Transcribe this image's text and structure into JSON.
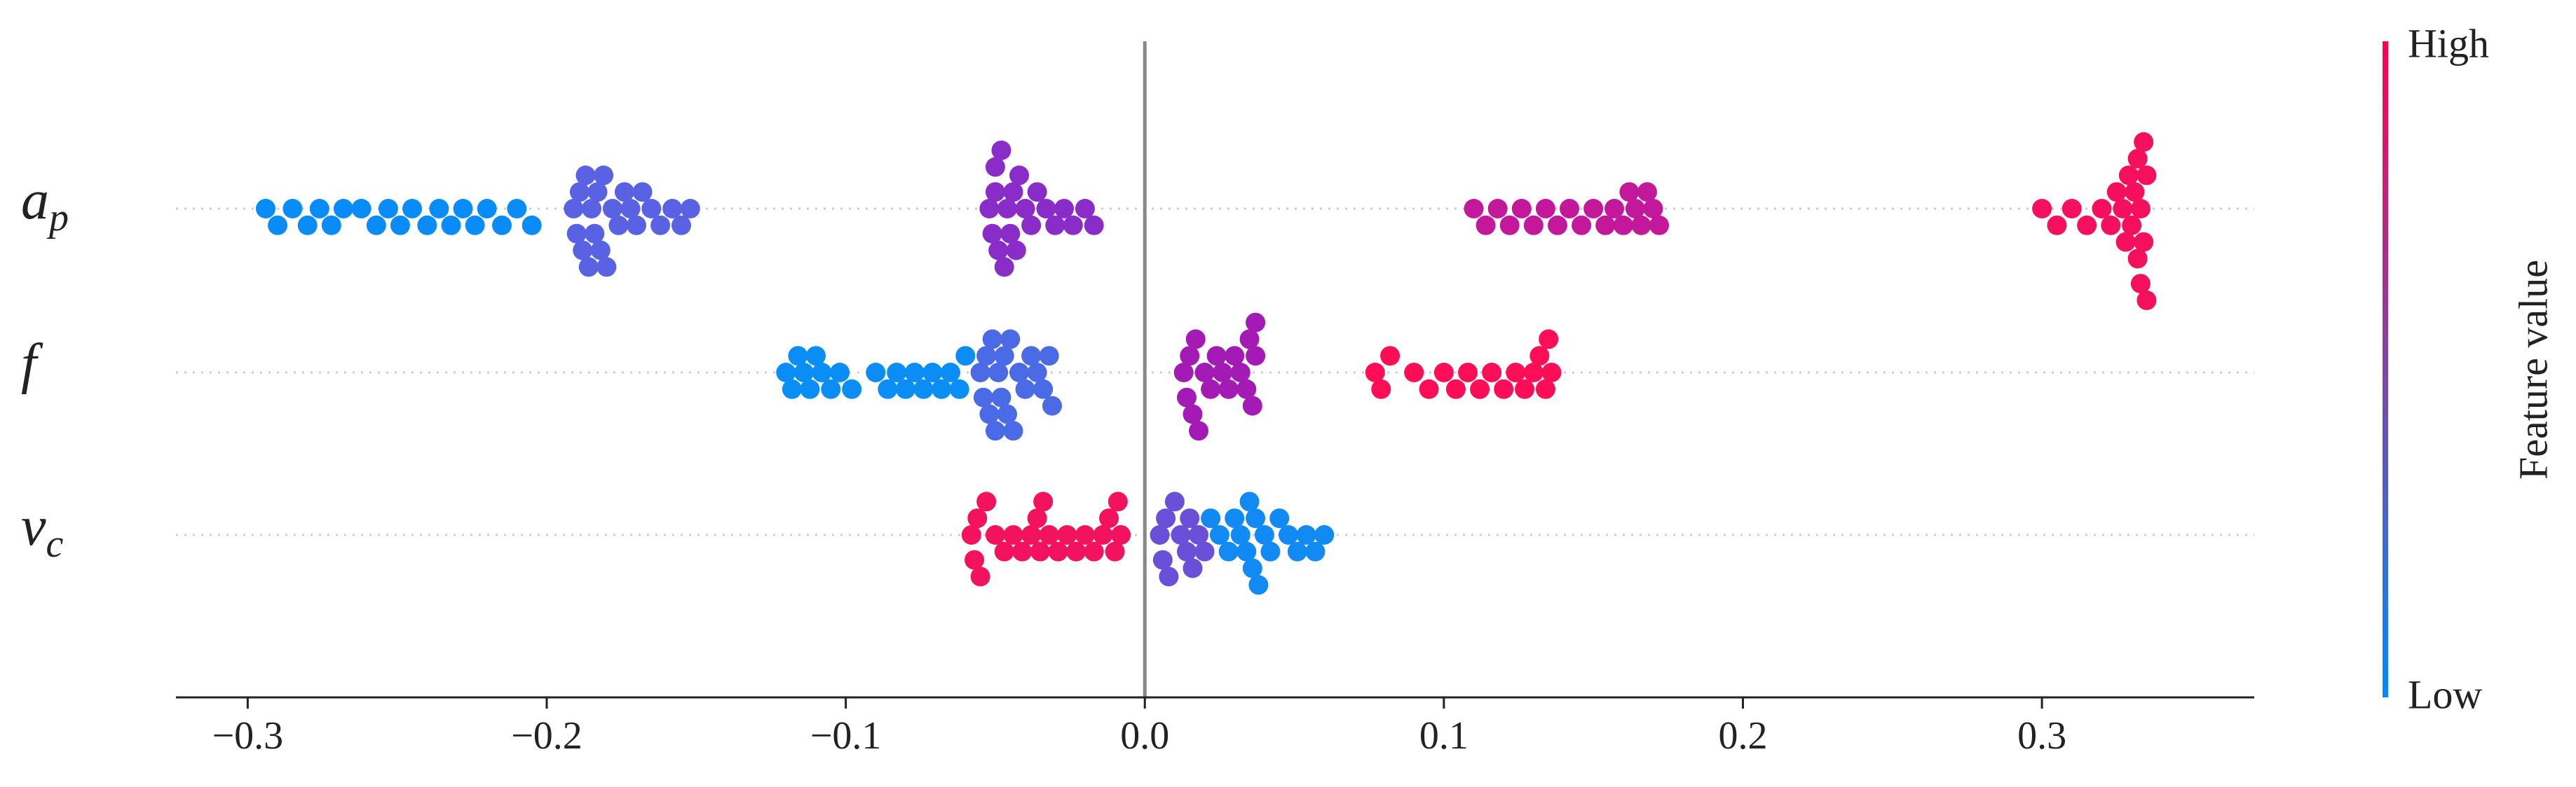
{
  "chart_data": {
    "type": "beeswarm",
    "xlim": [
      -0.324,
      0.371
    ],
    "xticks": [
      {
        "value": -0.3,
        "label": "−0.3"
      },
      {
        "value": -0.2,
        "label": "−0.2"
      },
      {
        "value": -0.1,
        "label": "−0.1"
      },
      {
        "value": 0,
        "label": "0.0"
      },
      0.1,
      0.2,
      0.3
    ],
    "features": [
      {
        "label": "a",
        "subscript": "p"
      },
      {
        "label": "f"
      },
      {
        "label": "v",
        "subscript": "c"
      }
    ],
    "series": [
      {
        "feature": 0,
        "color": "#0a8cf8",
        "values": [
          -0.294,
          -0.29,
          -0.285,
          -0.28,
          -0.276,
          -0.272,
          -0.268,
          -0.262,
          -0.257,
          -0.253,
          -0.249,
          -0.245,
          -0.24,
          -0.236,
          -0.232,
          -0.228,
          -0.224,
          -0.22,
          -0.215,
          -0.21,
          -0.205
        ]
      },
      {
        "feature": 0,
        "color": "#5a62e4",
        "values": [
          -0.191,
          -0.19,
          -0.189,
          -0.188,
          -0.187,
          -0.186,
          -0.185,
          -0.184,
          -0.183,
          -0.182,
          -0.181,
          -0.18,
          -0.178,
          -0.176,
          -0.174,
          -0.172,
          -0.17,
          -0.168,
          -0.165,
          -0.162,
          -0.158,
          -0.155,
          -0.152
        ]
      },
      {
        "feature": 0,
        "color": "#8a2dc8",
        "values": [
          -0.052,
          -0.051,
          -0.05,
          -0.05,
          -0.049,
          -0.048,
          -0.047,
          -0.046,
          -0.045,
          -0.044,
          -0.043,
          -0.042,
          -0.04,
          -0.038,
          -0.036,
          -0.033,
          -0.03,
          -0.027,
          -0.024,
          -0.02,
          -0.017
        ]
      },
      {
        "feature": 0,
        "color": "#c4189c",
        "values": [
          0.11,
          0.114,
          0.118,
          0.122,
          0.126,
          0.13,
          0.134,
          0.138,
          0.142,
          0.146,
          0.15,
          0.154,
          0.157,
          0.16,
          0.162,
          0.164,
          0.166,
          0.168,
          0.17,
          0.172
        ]
      },
      {
        "feature": 0,
        "color": "#f5105e",
        "values": [
          0.3,
          0.305,
          0.31,
          0.315,
          0.32,
          0.323,
          0.325,
          0.327,
          0.328,
          0.329,
          0.33,
          0.331,
          0.332,
          0.333,
          0.334,
          0.335,
          0.335,
          0.334,
          0.333,
          0.332
        ]
      },
      {
        "feature": 1,
        "color": "#0a8ef5",
        "values": [
          -0.12,
          -0.118,
          -0.116,
          -0.114,
          -0.112,
          -0.11,
          -0.108,
          -0.105,
          -0.102,
          -0.098,
          -0.09,
          -0.086,
          -0.083,
          -0.08,
          -0.077,
          -0.074,
          -0.071,
          -0.068,
          -0.065,
          -0.062,
          -0.06
        ]
      },
      {
        "feature": 1,
        "color": "#4a6ae6",
        "values": [
          -0.055,
          -0.054,
          -0.053,
          -0.052,
          -0.051,
          -0.05,
          -0.049,
          -0.048,
          -0.047,
          -0.046,
          -0.045,
          -0.044,
          -0.042,
          -0.04,
          -0.038,
          -0.036,
          -0.034,
          -0.032,
          -0.031
        ]
      },
      {
        "feature": 1,
        "color": "#a31ab5",
        "values": [
          0.013,
          0.014,
          0.015,
          0.016,
          0.017,
          0.018,
          0.02,
          0.022,
          0.024,
          0.026,
          0.028,
          0.03,
          0.032,
          0.034,
          0.035,
          0.036,
          0.037,
          0.037
        ]
      },
      {
        "feature": 1,
        "color": "#ff0d57",
        "values": [
          0.077,
          0.079,
          0.082,
          0.09,
          0.095,
          0.1,
          0.104,
          0.108,
          0.112,
          0.116,
          0.12,
          0.124,
          0.127,
          0.13,
          0.132,
          0.134,
          0.135,
          0.136
        ]
      },
      {
        "feature": 2,
        "color": "#f2125e",
        "values": [
          -0.058,
          -0.057,
          -0.056,
          -0.055,
          -0.053,
          -0.05,
          -0.047,
          -0.044,
          -0.041,
          -0.038,
          -0.036,
          -0.035,
          -0.034,
          -0.032,
          -0.029,
          -0.026,
          -0.023,
          -0.02,
          -0.017,
          -0.014,
          -0.012,
          -0.01,
          -0.009,
          -0.008
        ]
      },
      {
        "feature": 2,
        "color": "#6a4fd8",
        "values": [
          0.005,
          0.006,
          0.007,
          0.008,
          0.01,
          0.012,
          0.014,
          0.015,
          0.016,
          0.018,
          0.02
        ]
      },
      {
        "feature": 2,
        "color": "#118af3",
        "values": [
          0.022,
          0.025,
          0.028,
          0.03,
          0.032,
          0.034,
          0.035,
          0.036,
          0.037,
          0.038,
          0.04,
          0.042,
          0.045,
          0.048,
          0.051,
          0.054,
          0.057,
          0.06
        ]
      }
    ],
    "colorbar": {
      "label": "Feature value",
      "high": "High",
      "low": "Low",
      "colors": [
        "#008bfb",
        "#ff0052"
      ]
    }
  }
}
